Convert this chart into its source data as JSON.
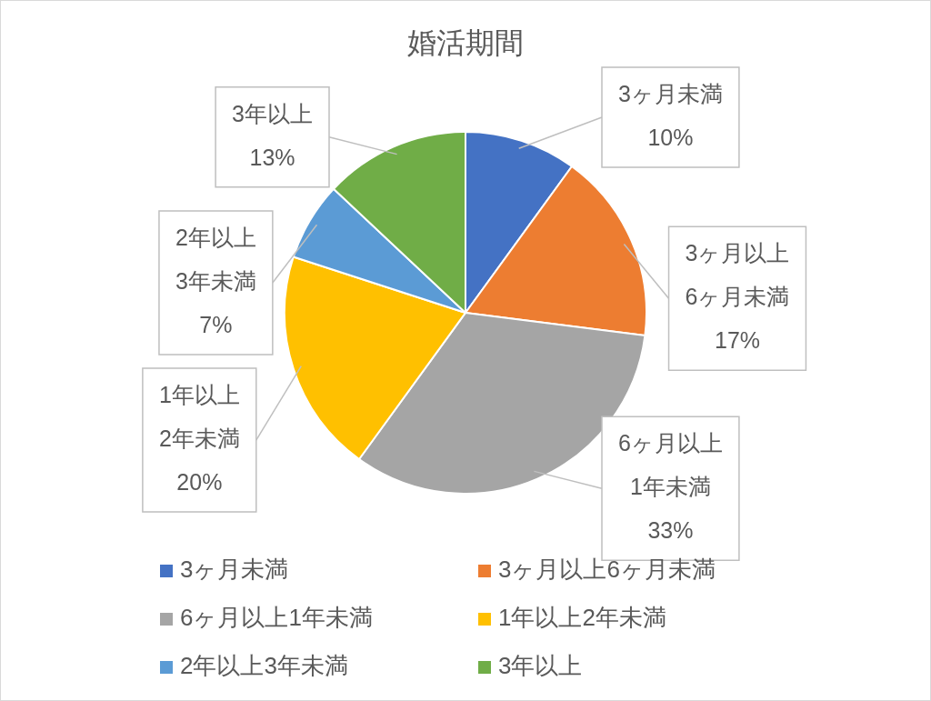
{
  "chart_data": {
    "type": "pie",
    "title": "婚活期間",
    "categories": [
      "3ヶ月未満",
      "3ヶ月以上6ヶ月未満",
      "6ヶ月以上1年未満",
      "1年以上2年未満",
      "2年以上3年未満",
      "3年以上"
    ],
    "values": [
      10,
      17,
      33,
      20,
      7,
      13
    ],
    "value_labels": [
      "10%",
      "17%",
      "33%",
      "20%",
      "7%",
      "13%"
    ],
    "colors": [
      "#4472c4",
      "#ed7d31",
      "#a5a5a5",
      "#ffc000",
      "#5b9bd5",
      "#70ad47"
    ],
    "legend": "bottom"
  }
}
